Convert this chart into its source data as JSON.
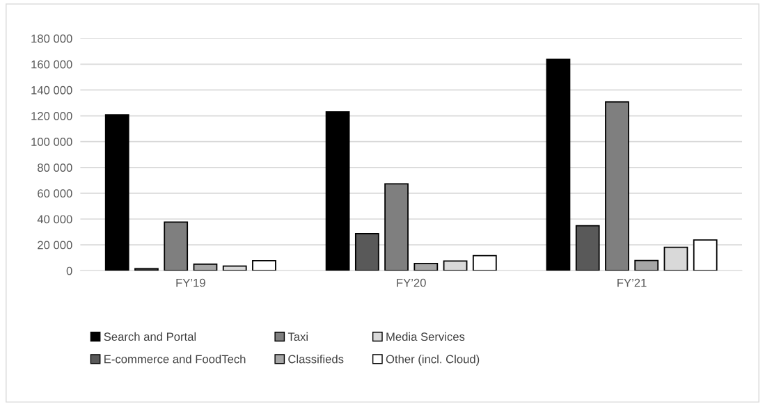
{
  "chart_data": {
    "type": "bar",
    "categories": [
      "FY’19",
      "FY’20",
      "FY’21"
    ],
    "series": [
      {
        "name": "Search and Portal",
        "color": "#000000",
        "values": [
          120800,
          123100,
          163700
        ]
      },
      {
        "name": "E-commerce and FoodTech",
        "color": "#595959",
        "values": [
          1500,
          28700,
          34800
        ]
      },
      {
        "name": "Taxi",
        "color": "#7f7f7f",
        "values": [
          37700,
          67300,
          130800
        ]
      },
      {
        "name": "Classifieds",
        "color": "#a6a6a6",
        "values": [
          5100,
          5600,
          7900
        ]
      },
      {
        "name": "Media Services",
        "color": "#d9d9d9",
        "values": [
          3600,
          7500,
          18100
        ]
      },
      {
        "name": "Other (incl. Cloud)",
        "color": "#ffffff",
        "values": [
          7800,
          11700,
          23800
        ]
      }
    ],
    "ylim": [
      0,
      180000
    ],
    "yticks": [
      {
        "value": 0,
        "label": "0"
      },
      {
        "value": 20000,
        "label": "20 000"
      },
      {
        "value": 40000,
        "label": "40 000"
      },
      {
        "value": 60000,
        "label": "60 000"
      },
      {
        "value": 80000,
        "label": "80 000"
      },
      {
        "value": 100000,
        "label": "100 000"
      },
      {
        "value": 120000,
        "label": "120 000"
      },
      {
        "value": 140000,
        "label": "140 000"
      },
      {
        "value": 160000,
        "label": "160 000"
      },
      {
        "value": 180000,
        "label": "180 000"
      }
    ],
    "grid": "y",
    "legend": "bottom"
  }
}
